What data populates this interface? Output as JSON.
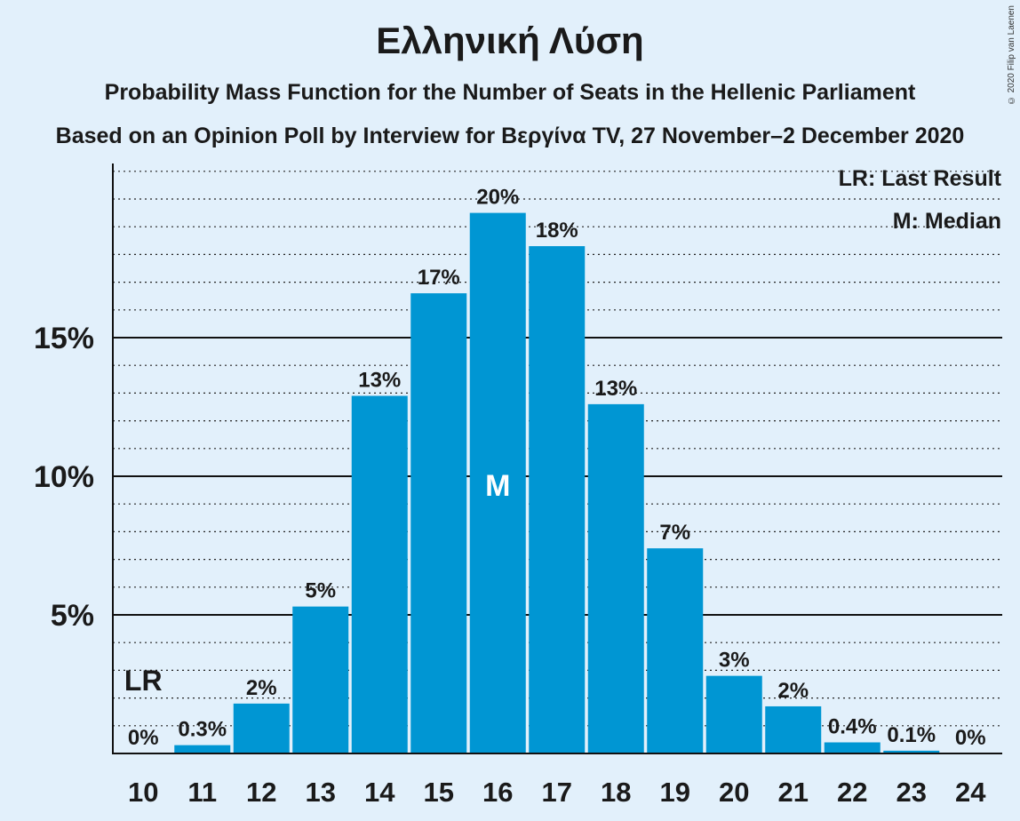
{
  "title": "Ελληνική Λύση",
  "subtitle1": "Probability Mass Function for the Number of Seats in the Hellenic Parliament",
  "subtitle2": "Based on an Opinion Poll by Interview for Βεργίνα TV, 27 November–2 December 2020",
  "copyright": "© 2020 Filip van Laenen",
  "legend": {
    "last_result": "LR: Last Result",
    "median": "M: Median"
  },
  "markers": {
    "last_result_label": "LR",
    "median_label": "M"
  },
  "colors": {
    "bar": "#0096d3",
    "background": "#e2f0fb"
  },
  "chart_data": {
    "type": "bar",
    "title": "Ελληνική Λύση",
    "categories": [
      "10",
      "11",
      "12",
      "13",
      "14",
      "15",
      "16",
      "17",
      "18",
      "19",
      "20",
      "21",
      "22",
      "23",
      "24"
    ],
    "values": [
      0,
      0.3,
      1.8,
      5.3,
      12.9,
      16.6,
      19.5,
      18.3,
      12.6,
      7.4,
      2.8,
      1.7,
      0.4,
      0.1,
      0
    ],
    "labels": [
      "0%",
      "0.3%",
      "2%",
      "5%",
      "13%",
      "17%",
      "20%",
      "18%",
      "13%",
      "7%",
      "3%",
      "2%",
      "0.4%",
      "0.1%",
      "0%"
    ],
    "yticks": [
      5,
      10,
      15
    ],
    "ytick_labels": [
      "5%",
      "10%",
      "15%"
    ],
    "ylim": [
      0,
      21
    ],
    "minor_grid_step": 1,
    "last_result": "10",
    "median": "16",
    "legend_position": "top-right"
  }
}
